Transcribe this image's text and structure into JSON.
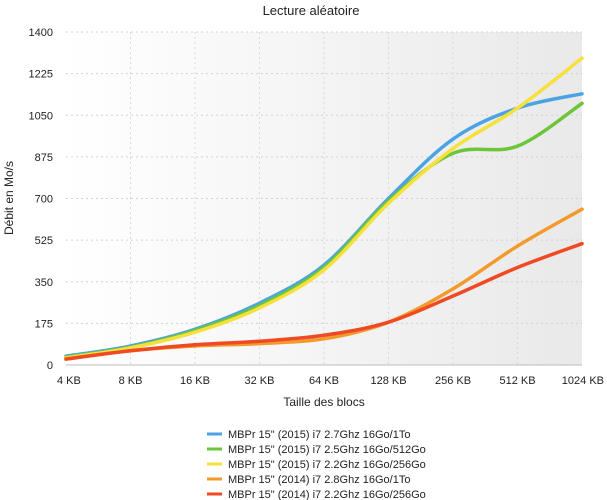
{
  "chart_data": {
    "type": "line",
    "title": "Lecture aléatoire",
    "xlabel": "Taille des blocs",
    "ylabel": "Débit en Mo/s",
    "categories": [
      "4 KB",
      "8 KB",
      "16 KB",
      "32 KB",
      "64 KB",
      "128 KB",
      "256 KB",
      "512 KB",
      "1024 KB"
    ],
    "ylim": [
      0,
      1400
    ],
    "yticks": [
      "0",
      "175",
      "350",
      "525",
      "700",
      "875",
      "1050",
      "1225",
      "1400"
    ],
    "grid": true,
    "legend_position": "bottom",
    "series": [
      {
        "name": "MBPr 15\" (2015) i7 2.7Ghz 16Go/1To",
        "color": "#4ba3e3",
        "values": [
          37,
          80,
          150,
          260,
          420,
          700,
          950,
          1080,
          1140
        ]
      },
      {
        "name": "MBPr 15\" (2015) i7 2.5Ghz 16Go/512Go",
        "color": "#6cc63a",
        "values": [
          33,
          75,
          145,
          250,
          410,
          690,
          890,
          920,
          1100
        ]
      },
      {
        "name": "MBPr 15\" (2015) i7 2.2Ghz 16Go/256Go",
        "color": "#f5e03c",
        "values": [
          30,
          72,
          138,
          240,
          400,
          680,
          910,
          1080,
          1290
        ]
      },
      {
        "name": "MBPr 15\" (2014) i7 2.8Ghz 16Go/1To",
        "color": "#f49a2c",
        "values": [
          25,
          60,
          80,
          90,
          110,
          180,
          320,
          500,
          655
        ]
      },
      {
        "name": "MBPr 15\" (2014) i7 2.2Ghz 16Go/256Go",
        "color": "#ee4b25",
        "values": [
          25,
          60,
          85,
          100,
          125,
          180,
          290,
          410,
          510
        ]
      }
    ]
  }
}
